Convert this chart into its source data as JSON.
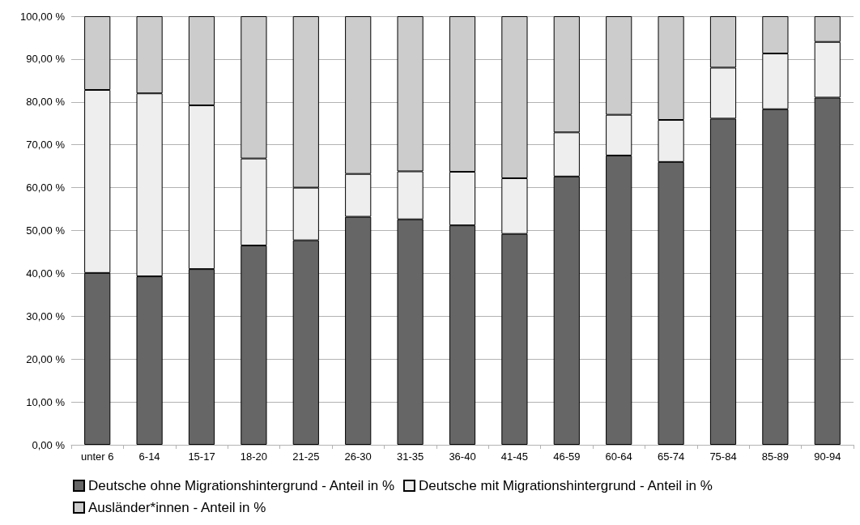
{
  "chart_data": {
    "type": "bar",
    "stacked": true,
    "categories": [
      "unter 6",
      "6-14",
      "15-17",
      "18-20",
      "21-25",
      "26-30",
      "31-35",
      "36-40",
      "41-45",
      "46-59",
      "60-64",
      "65-74",
      "75-84",
      "85-89",
      "90-94"
    ],
    "series": [
      {
        "name": "Deutsche ohne Migrationshintergrund - Anteil in %",
        "color": "#666666",
        "values": [
          40.1,
          39.3,
          41.0,
          46.5,
          47.7,
          53.2,
          52.6,
          51.2,
          49.2,
          62.6,
          67.5,
          66.0,
          76.1,
          78.3,
          81.0
        ]
      },
      {
        "name": "Deutsche mit Migrationshintergrund - Anteil in %",
        "color": "#eeeeee",
        "values": [
          42.7,
          42.7,
          38.2,
          20.3,
          12.3,
          10.0,
          11.2,
          12.5,
          13.0,
          10.3,
          9.5,
          9.8,
          11.9,
          13.0,
          13.0
        ]
      },
      {
        "name": "Ausländer*innen - Anteil in %",
        "color": "#cccccc",
        "values": [
          17.2,
          18.0,
          20.8,
          33.2,
          40.0,
          36.8,
          36.2,
          36.3,
          37.8,
          27.1,
          23.0,
          24.2,
          12.0,
          8.7,
          6.0
        ]
      }
    ],
    "ylim": [
      0,
      100
    ],
    "yticks": [
      {
        "value": 0,
        "label": "0,00 %"
      },
      {
        "value": 10,
        "label": "10,00 %"
      },
      {
        "value": 20,
        "label": "20,00 %"
      },
      {
        "value": 30,
        "label": "30,00 %"
      },
      {
        "value": 40,
        "label": "40,00 %"
      },
      {
        "value": 50,
        "label": "50,00 %"
      },
      {
        "value": 60,
        "label": "60,00 %"
      },
      {
        "value": 70,
        "label": "70,00 %"
      },
      {
        "value": 80,
        "label": "80,00 %"
      },
      {
        "value": 90,
        "label": "90,00 %"
      },
      {
        "value": 100,
        "label": "100,00 %"
      }
    ],
    "grid": "y",
    "legend": "bottom left"
  }
}
